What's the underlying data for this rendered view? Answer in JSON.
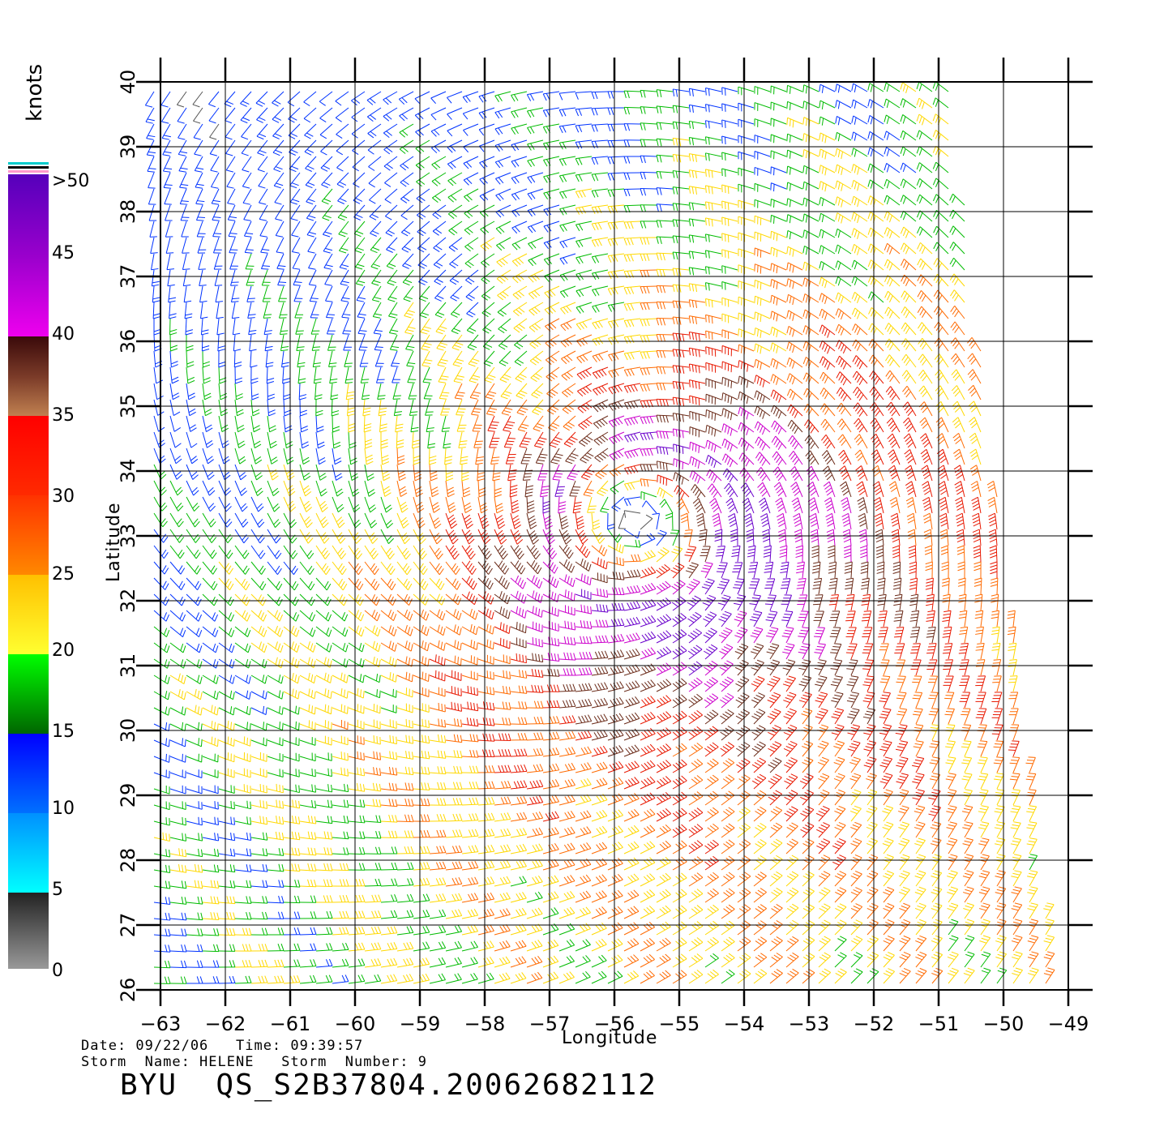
{
  "map": {
    "lon_ticks": [
      "-63",
      "-62",
      "-61",
      "-60",
      "-59",
      "-58",
      "-57",
      "-56",
      "-55",
      "-54",
      "-53",
      "-52",
      "-51",
      "-50",
      "-49"
    ],
    "lat_ticks": [
      "26",
      "27",
      "28",
      "29",
      "30",
      "31",
      "32",
      "33",
      "34",
      "35",
      "36",
      "37",
      "38",
      "39",
      "40"
    ],
    "lon_range": [
      -63,
      -49
    ],
    "lat_range": [
      26,
      40
    ],
    "x_label": "Longitude",
    "y_label": "Latitude",
    "storm_center": {
      "lon": -55.5,
      "lat": 33.1
    }
  },
  "colorbar": {
    "units": "knots",
    "labels": [
      ">50",
      "45",
      "40",
      "35",
      "30",
      "25",
      "20",
      "15",
      "10",
      "5",
      "0"
    ],
    "colors": {
      "gray": "#555555",
      "blue": "#0033ff",
      "green": "#00bb00",
      "yellow": "#ffd800",
      "orange": "#ff6a00",
      "red": "#e81800",
      "brown": "#6a2a18",
      "magenta": "#cc00cc",
      "purple": "#6a00cc"
    }
  },
  "footer": {
    "date_line": "Date: 09/22/06   Time: 09:39:57",
    "storm_line": "Storm  Name: HELENE   Storm  Number: 9",
    "title": "BYU  QS_S2B37804.20062682112"
  }
}
